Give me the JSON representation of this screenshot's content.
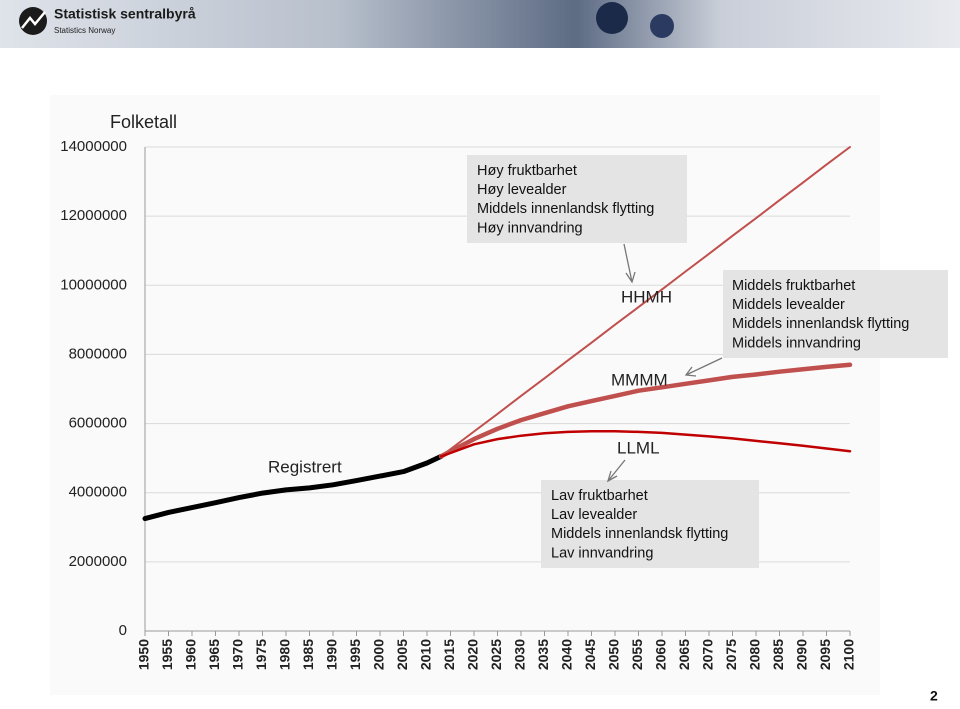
{
  "header": {
    "title": "Statistisk sentralbyrå",
    "subtitle": "Statistics Norway"
  },
  "page_number": "2",
  "chart_data": {
    "type": "line",
    "y_label": "Folketall",
    "x": [
      1950,
      1955,
      1960,
      1965,
      1970,
      1975,
      1980,
      1985,
      1990,
      1995,
      2000,
      2005,
      2010,
      2013,
      2015,
      2020,
      2025,
      2030,
      2035,
      2040,
      2045,
      2050,
      2055,
      2060,
      2065,
      2070,
      2075,
      2080,
      2085,
      2090,
      2095,
      2100
    ],
    "xlim": [
      1950,
      2100
    ],
    "xticks": [
      1950,
      1955,
      1960,
      1965,
      1970,
      1975,
      1980,
      1985,
      1990,
      1995,
      2000,
      2005,
      2010,
      2015,
      2020,
      2025,
      2030,
      2035,
      2040,
      2045,
      2050,
      2055,
      2060,
      2065,
      2070,
      2075,
      2080,
      2085,
      2090,
      2095,
      2100
    ],
    "ylim": [
      0,
      14000000
    ],
    "yticks": [
      0,
      2000000,
      4000000,
      6000000,
      8000000,
      10000000,
      12000000,
      14000000
    ],
    "grid": true,
    "series": [
      {
        "name": "Registrert",
        "color": "#000000",
        "width": 5,
        "values": [
          3250000,
          3430000,
          3570000,
          3710000,
          3860000,
          3990000,
          4080000,
          4140000,
          4230000,
          4350000,
          4480000,
          4610000,
          4860000,
          5050000,
          null,
          null,
          null,
          null,
          null,
          null,
          null,
          null,
          null,
          null,
          null,
          null,
          null,
          null,
          null,
          null,
          null,
          null
        ]
      },
      {
        "name": "HHMH",
        "color": "#c0504d",
        "width": 2,
        "values": [
          null,
          null,
          null,
          null,
          null,
          null,
          null,
          null,
          null,
          null,
          null,
          null,
          null,
          5050000,
          5260000,
          5770000,
          6280000,
          6800000,
          7310000,
          7830000,
          8340000,
          8860000,
          9370000,
          9880000,
          10400000,
          10910000,
          11430000,
          11940000,
          12460000,
          12970000,
          13490000,
          14000000
        ]
      },
      {
        "name": "MMMM",
        "color": "#c0504d",
        "width": 4.5,
        "values": [
          null,
          null,
          null,
          null,
          null,
          null,
          null,
          null,
          null,
          null,
          null,
          null,
          null,
          5050000,
          5200000,
          5550000,
          5850000,
          6100000,
          6300000,
          6500000,
          6650000,
          6800000,
          6950000,
          7050000,
          7150000,
          7250000,
          7350000,
          7420000,
          7500000,
          7570000,
          7640000,
          7700000
        ]
      },
      {
        "name": "LLML",
        "color": "#c00000",
        "width": 2.5,
        "values": [
          null,
          null,
          null,
          null,
          null,
          null,
          null,
          null,
          null,
          null,
          null,
          null,
          null,
          5050000,
          5150000,
          5400000,
          5550000,
          5650000,
          5720000,
          5760000,
          5780000,
          5780000,
          5760000,
          5730000,
          5680000,
          5630000,
          5570000,
          5500000,
          5430000,
          5360000,
          5280000,
          5200000
        ]
      }
    ],
    "annotations": [
      {
        "lines": [
          "Høy fruktbarhet",
          "Høy levealder",
          "Middels innenlandsk flytting",
          "Høy innvandring"
        ]
      },
      {
        "lines": [
          "Middels fruktbarhet",
          "Middels levealder",
          "Middels innenlandsk flytting",
          "Middels innvandring"
        ]
      },
      {
        "lines": [
          "Lav fruktbarhet",
          "Lav levealder",
          "Middels innenlandsk flytting",
          "Lav innvandring"
        ]
      }
    ]
  }
}
